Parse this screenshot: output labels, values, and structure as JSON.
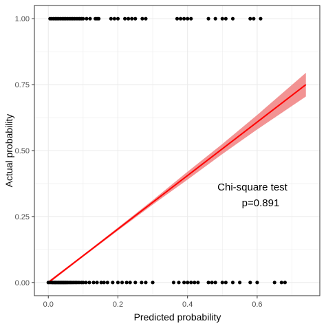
{
  "chart_data": {
    "type": "scatter",
    "xlabel": "Predicted probability",
    "ylabel": "Actual probability",
    "xlim": [
      -0.04,
      0.78
    ],
    "ylim": [
      -0.05,
      1.05
    ],
    "x_ticks": [
      0.0,
      0.2,
      0.4,
      0.6
    ],
    "x_tick_labels": [
      "0.0",
      "0.2",
      "0.4",
      "0.6"
    ],
    "y_ticks": [
      0.0,
      0.25,
      0.5,
      0.75,
      1.0
    ],
    "y_tick_labels": [
      "0.00",
      "0.25",
      "0.50",
      "0.75",
      "1.00"
    ],
    "grid": true,
    "annotation": {
      "lines": [
        "Chi-square test",
        "p=0.891"
      ],
      "x": 0.6,
      "y": 0.33
    },
    "colors": {
      "points": "#000000",
      "fit_line": "#ff0000",
      "ci_band": "#f08080",
      "grid": "#ebebeb",
      "frame": "#333333"
    },
    "series": [
      {
        "values_x": [
          0.0,
          0.005,
          0.01,
          0.012,
          0.015,
          0.018,
          0.02,
          0.022,
          0.025,
          0.028,
          0.03,
          0.033,
          0.035,
          0.038,
          0.04,
          0.043,
          0.045,
          0.048,
          0.05,
          0.053,
          0.056,
          0.06,
          0.064,
          0.068,
          0.072,
          0.077,
          0.082,
          0.088,
          0.095,
          0.1,
          0.108,
          0.118,
          0.13,
          0.14,
          0.152,
          0.16,
          0.17,
          0.185,
          0.2,
          0.212,
          0.225,
          0.235,
          0.25,
          0.268,
          0.28,
          0.3,
          0.36,
          0.375,
          0.39,
          0.4,
          0.41,
          0.42,
          0.43,
          0.46,
          0.47,
          0.48,
          0.5,
          0.51,
          0.53,
          0.55,
          0.58,
          0.6,
          0.65,
          0.67,
          0.68
        ],
        "values_y": [
          0,
          0,
          0,
          0,
          0,
          0,
          0,
          0,
          0,
          0,
          0,
          0,
          0,
          0,
          0,
          0,
          0,
          0,
          0,
          0,
          0,
          0,
          0,
          0,
          0,
          0,
          0,
          0,
          0,
          0,
          0,
          0,
          0,
          0,
          0,
          0,
          0,
          0,
          0,
          0,
          0,
          0,
          0,
          0,
          0,
          0,
          0,
          0,
          0,
          0,
          0,
          0,
          0,
          0,
          0,
          0,
          0,
          0,
          0,
          0,
          0,
          0,
          0,
          0,
          0
        ]
      },
      {
        "values_x": [
          0.005,
          0.01,
          0.015,
          0.02,
          0.025,
          0.03,
          0.035,
          0.04,
          0.045,
          0.05,
          0.055,
          0.06,
          0.065,
          0.07,
          0.075,
          0.08,
          0.085,
          0.09,
          0.095,
          0.1,
          0.11,
          0.12,
          0.135,
          0.14,
          0.145,
          0.18,
          0.19,
          0.2,
          0.22,
          0.23,
          0.24,
          0.25,
          0.27,
          0.28,
          0.37,
          0.38,
          0.39,
          0.4,
          0.41,
          0.46,
          0.48,
          0.5,
          0.51,
          0.53,
          0.58,
          0.59,
          0.61
        ],
        "values_y": [
          1,
          1,
          1,
          1,
          1,
          1,
          1,
          1,
          1,
          1,
          1,
          1,
          1,
          1,
          1,
          1,
          1,
          1,
          1,
          1,
          1,
          1,
          1,
          1,
          1,
          1,
          1,
          1,
          1,
          1,
          1,
          1,
          1,
          1,
          1,
          1,
          1,
          1,
          1,
          1,
          1,
          1,
          1,
          1,
          1,
          1,
          1
        ]
      }
    ],
    "fit_line": {
      "x": [
        0.0,
        0.74
      ],
      "y": [
        0.0,
        0.75
      ]
    },
    "ci_band": {
      "x": [
        0.0,
        0.1,
        0.2,
        0.3,
        0.4,
        0.5,
        0.6,
        0.74
      ],
      "upper": [
        0.005,
        0.105,
        0.208,
        0.312,
        0.42,
        0.525,
        0.635,
        0.795
      ],
      "lower": [
        -0.005,
        0.097,
        0.197,
        0.295,
        0.39,
        0.487,
        0.58,
        0.705
      ]
    }
  }
}
